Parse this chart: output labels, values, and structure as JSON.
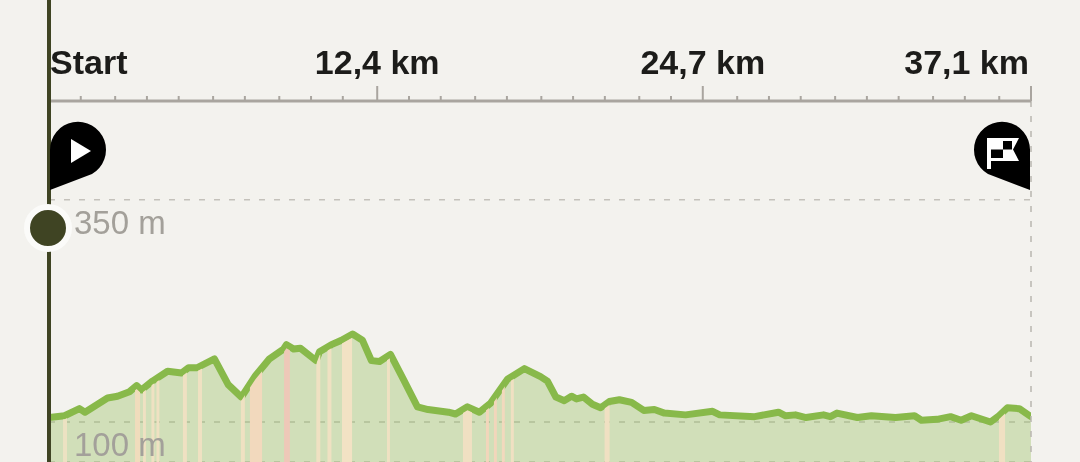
{
  "chart_data": {
    "type": "area",
    "xlim": [
      0,
      37.1
    ],
    "xticks": [
      {
        "value": 0,
        "label": "Start"
      },
      {
        "value": 1.2,
        "label": null
      },
      {
        "value": 2.5,
        "label": null
      },
      {
        "value": 3.7,
        "label": null
      },
      {
        "value": 4.9,
        "label": null
      },
      {
        "value": 6.2,
        "label": null
      },
      {
        "value": 7.4,
        "label": null
      },
      {
        "value": 8.7,
        "label": null
      },
      {
        "value": 9.9,
        "label": null
      },
      {
        "value": 11.1,
        "label": null
      },
      {
        "value": 12.4,
        "label": "12,4 km"
      },
      {
        "value": 13.6,
        "label": null
      },
      {
        "value": 14.8,
        "label": null
      },
      {
        "value": 16.1,
        "label": null
      },
      {
        "value": 17.3,
        "label": null
      },
      {
        "value": 18.6,
        "label": null
      },
      {
        "value": 19.8,
        "label": null
      },
      {
        "value": 21,
        "label": null
      },
      {
        "value": 22.3,
        "label": null
      },
      {
        "value": 23.5,
        "label": null
      },
      {
        "value": 24.7,
        "label": "24,7 km"
      },
      {
        "value": 26,
        "label": null
      },
      {
        "value": 27.2,
        "label": null
      },
      {
        "value": 28.4,
        "label": null
      },
      {
        "value": 29.7,
        "label": null
      },
      {
        "value": 30.9,
        "label": null
      },
      {
        "value": 32.1,
        "label": null
      },
      {
        "value": 33.4,
        "label": null
      },
      {
        "value": 34.6,
        "label": null
      },
      {
        "value": 35.9,
        "label": null
      },
      {
        "value": 37.1,
        "label": "37,1 km"
      }
    ],
    "ylim": [
      55,
      461
    ],
    "yticks": [
      {
        "value": 100,
        "label": "100 m"
      },
      {
        "value": 350,
        "label": "350 m"
      }
    ],
    "grid": "y",
    "color": "#88b94a",
    "x": [
      0,
      0.59,
      1.15,
      1.36,
      2.21,
      2.59,
      3.04,
      3.31,
      3.49,
      3.91,
      4.48,
      5.01,
      5.27,
      5.59,
      6.25,
      6.77,
      7.27,
      7.8,
      8.33,
      8.86,
      8.97,
      9.24,
      9.5,
      10.09,
      10.22,
      10.67,
      11.05,
      11.47,
      11.84,
      12.18,
      12.49,
      12.9,
      13.39,
      13.92,
      14.32,
      15.09,
      15.36,
      15.81,
      16.26,
      16.68,
      17.32,
      17.96,
      18.57,
      18.83,
      19.15,
      19.47,
      19.74,
      19.93,
      20.19,
      20.53,
      20.84,
      21.17,
      21.55,
      22.01,
      22.47,
      22.87,
      23.25,
      24.05,
      25.07,
      25.34,
      26.66,
      27.56,
      27.83,
      28.2,
      28.6,
      29.26,
      29.52,
      29.77,
      30.54,
      31.07,
      31.98,
      32.7,
      32.96,
      33.55,
      34.06,
      34.46,
      34.85,
      35.57,
      35.89,
      36.21,
      36.66,
      37.1
    ],
    "values": [
      105,
      107,
      115,
      111,
      127,
      129,
      134,
      141,
      136,
      146,
      157,
      155,
      161,
      161,
      171,
      142,
      128,
      152,
      171,
      182,
      187,
      182,
      183,
      169,
      179,
      187,
      192,
      199,
      192,
      169,
      168,
      176,
      148,
      117,
      114,
      111,
      109,
      117,
      111,
      121,
      148,
      160,
      151,
      146,
      128,
      124,
      129,
      126,
      128,
      120,
      116,
      123,
      125,
      122,
      113,
      114,
      110,
      108,
      112,
      108,
      106,
      111,
      107,
      108,
      105,
      108,
      106,
      110,
      105,
      107,
      105,
      107,
      102,
      103,
      106,
      102,
      107,
      100,
      107,
      116,
      115,
      106
    ],
    "ref_lines": [
      {
        "axis": "x",
        "value": 37.1,
        "color": "#b9b6b0",
        "line_style": "dashed"
      }
    ],
    "bands": [
      {
        "axis": "x",
        "from": 0.53,
        "to": 0.68,
        "color": "#ece2c2"
      },
      {
        "axis": "x",
        "from": 3.25,
        "to": 3.44,
        "color": "#f0dcbc"
      },
      {
        "axis": "x",
        "from": 3.55,
        "to": 3.66,
        "color": "#efe1c2"
      },
      {
        "axis": "x",
        "from": 3.87,
        "to": 3.98,
        "color": "#efe1c2"
      },
      {
        "axis": "x",
        "from": 4.06,
        "to": 4.17,
        "color": "#efe1c2"
      },
      {
        "axis": "x",
        "from": 5.06,
        "to": 5.21,
        "color": "#efe1c2"
      },
      {
        "axis": "x",
        "from": 5.63,
        "to": 5.78,
        "color": "#efe1c2"
      },
      {
        "axis": "x",
        "from": 7.25,
        "to": 7.4,
        "color": "#efe1c2"
      },
      {
        "axis": "x",
        "from": 7.59,
        "to": 8.05,
        "color": "#f2d9bd"
      },
      {
        "axis": "x",
        "from": 8.88,
        "to": 9.1,
        "color": "#eec8b8"
      },
      {
        "axis": "x",
        "from": 10.1,
        "to": 10.25,
        "color": "#efe1c2"
      },
      {
        "axis": "x",
        "from": 10.52,
        "to": 10.67,
        "color": "#efe1c2"
      },
      {
        "axis": "x",
        "from": 11.07,
        "to": 11.45,
        "color": "#f2e2c4"
      },
      {
        "axis": "x",
        "from": 12.77,
        "to": 12.88,
        "color": "#efe1c2"
      },
      {
        "axis": "x",
        "from": 15.64,
        "to": 15.98,
        "color": "#f0e0c2"
      },
      {
        "axis": "x",
        "from": 16.51,
        "to": 16.62,
        "color": "#f2d6bb"
      },
      {
        "axis": "x",
        "from": 16.81,
        "to": 16.92,
        "color": "#f2d6bb"
      },
      {
        "axis": "x",
        "from": 17.11,
        "to": 17.22,
        "color": "#f2d9bd"
      },
      {
        "axis": "x",
        "from": 17.45,
        "to": 17.56,
        "color": "#f0e0c2"
      },
      {
        "axis": "x",
        "from": 20.99,
        "to": 21.18,
        "color": "#f0e0c2"
      },
      {
        "axis": "x",
        "from": 35.89,
        "to": 36.12,
        "color": "#f0e0c2"
      }
    ]
  }
}
